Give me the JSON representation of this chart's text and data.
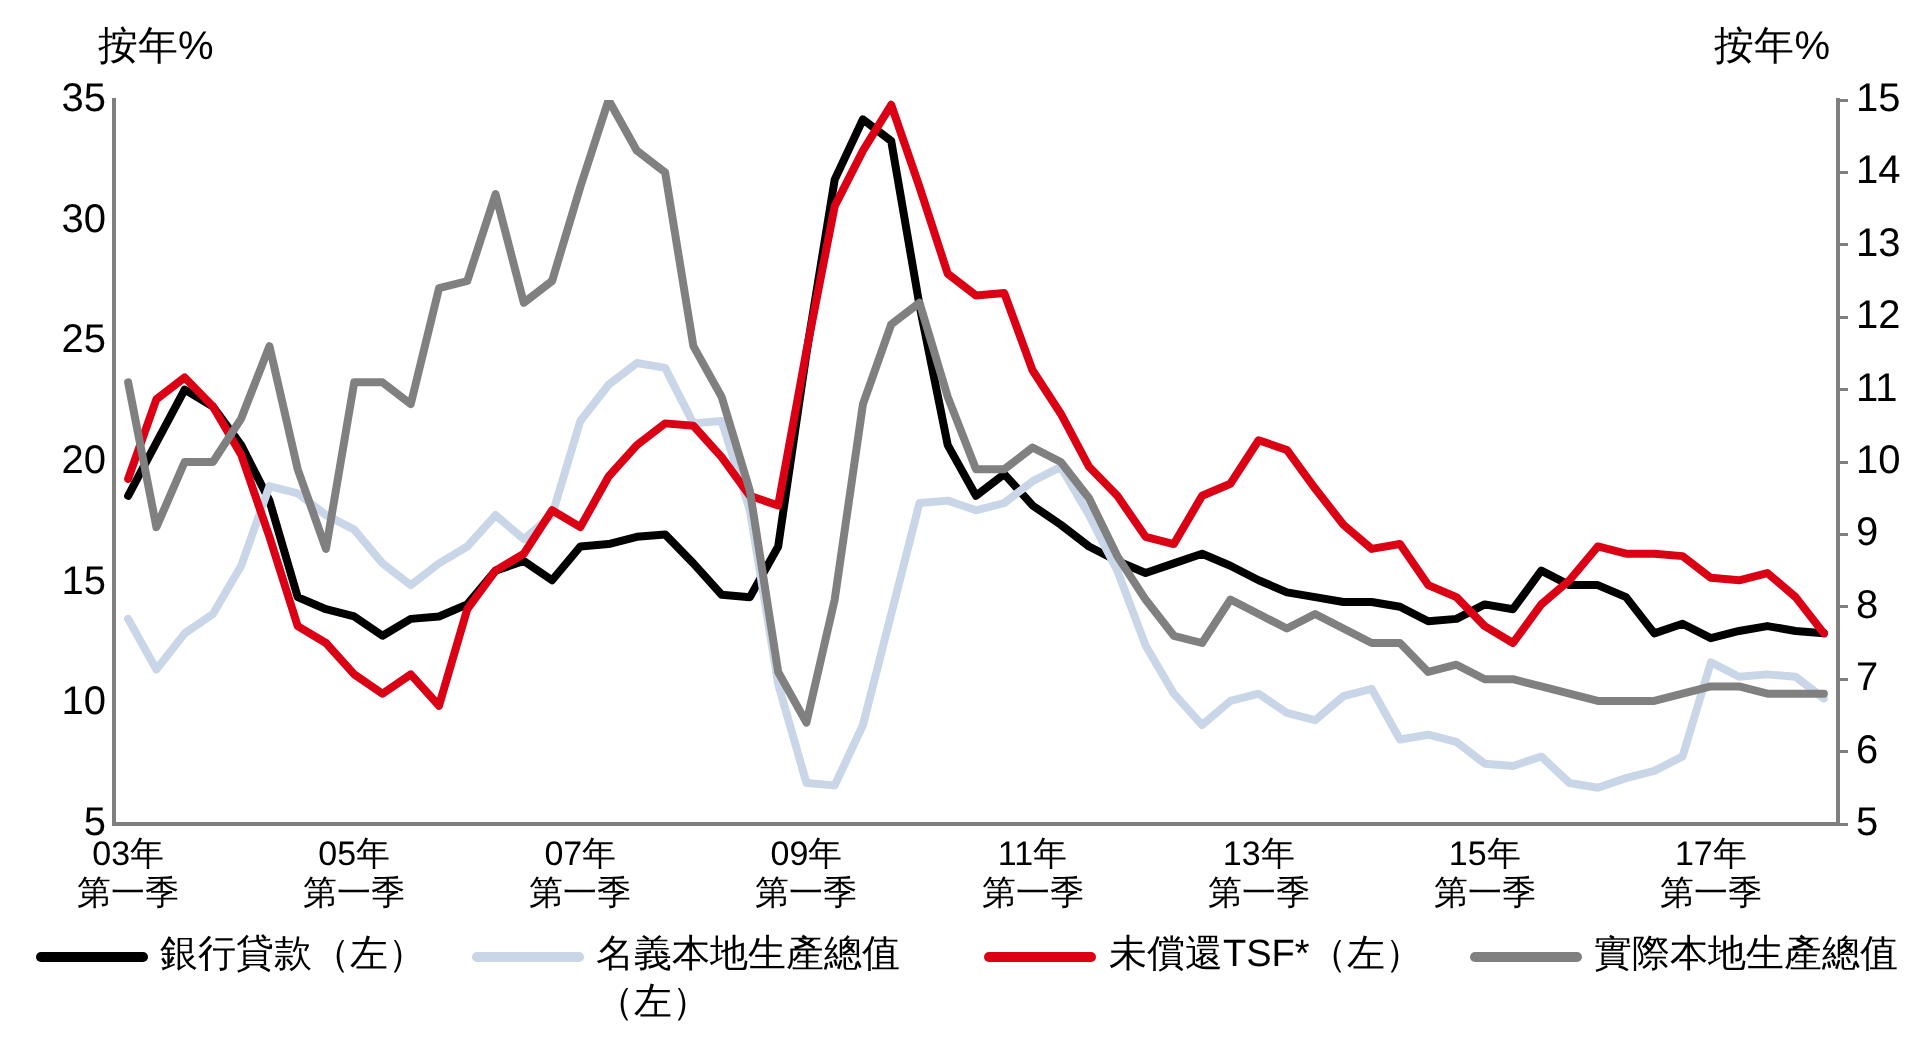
{
  "chart_data": {
    "type": "line",
    "ylabel": "按年%",
    "y2label": "按年%",
    "categories": [
      "03年第一季",
      null,
      null,
      null,
      null,
      null,
      null,
      null,
      "05年第一季",
      null,
      null,
      null,
      null,
      null,
      null,
      null,
      "07年第一季",
      null,
      null,
      null,
      null,
      null,
      null,
      null,
      "09年第一季",
      null,
      null,
      null,
      null,
      null,
      null,
      null,
      "11年第一季",
      null,
      null,
      null,
      null,
      null,
      null,
      null,
      "13年第一季",
      null,
      null,
      null,
      null,
      null,
      null,
      null,
      "15年第一季",
      null,
      null,
      null,
      null,
      null,
      null,
      null,
      "17年第一季",
      null,
      null,
      null,
      null
    ],
    "series": [
      {
        "name": "銀行貸款（左）",
        "color": "#000000",
        "values": [
          18.6,
          20.8,
          23.0,
          22.3,
          20.7,
          18.4,
          14.4,
          13.9,
          13.6,
          12.8,
          13.5,
          13.6,
          14.1,
          15.5,
          15.9,
          15.1,
          16.5,
          16.6,
          16.9,
          17.0,
          15.8,
          14.5,
          14.4,
          16.5,
          24.5,
          31.7,
          34.2,
          33.3,
          26.5,
          20.7,
          18.6,
          19.5,
          18.2,
          17.4,
          16.5,
          15.9,
          15.4,
          15.8,
          16.2,
          15.7,
          15.1,
          14.6,
          14.4,
          14.2,
          14.2,
          14.0,
          13.4,
          13.5,
          14.1,
          13.9,
          15.5,
          14.9,
          14.9,
          14.4,
          12.9,
          13.3,
          12.7,
          13.0,
          13.2,
          13.0,
          12.9
        ]
      },
      {
        "name": "名義本地生產總值（左）",
        "color": "#c9d6e8",
        "values": [
          13.5,
          11.4,
          12.9,
          13.7,
          15.7,
          19.0,
          18.7,
          17.8,
          17.2,
          15.8,
          14.9,
          15.8,
          16.5,
          17.8,
          16.8,
          17.8,
          21.7,
          23.2,
          24.1,
          23.9,
          21.6,
          21.7,
          18.0,
          10.8,
          6.7,
          6.6,
          9.1,
          13.7,
          18.3,
          18.4,
          18.0,
          18.3,
          19.2,
          19.8,
          17.8,
          15.5,
          12.4,
          10.4,
          9.1,
          10.1,
          10.4,
          9.6,
          9.3,
          10.3,
          10.6,
          8.5,
          8.7,
          8.4,
          7.5,
          7.4,
          7.8,
          6.7,
          6.5,
          6.9,
          7.2,
          7.8,
          11.7,
          11.1,
          11.2,
          11.1,
          10.2
        ]
      },
      {
        "name": "未償還TSF*（左）",
        "color": "#dc0014",
        "values": [
          19.3,
          22.6,
          23.5,
          22.3,
          20.3,
          16.9,
          13.2,
          12.5,
          11.2,
          10.4,
          11.2,
          9.9,
          13.9,
          15.5,
          16.2,
          18.0,
          17.3,
          19.4,
          20.7,
          21.6,
          21.5,
          20.2,
          18.6,
          18.2,
          24.6,
          30.6,
          32.9,
          34.8,
          31.4,
          27.8,
          26.9,
          27.0,
          23.8,
          22.0,
          19.8,
          18.6,
          16.9,
          16.6,
          18.6,
          19.1,
          20.9,
          20.5,
          18.9,
          17.4,
          16.4,
          16.6,
          14.9,
          14.4,
          13.2,
          12.5,
          14.1,
          15.1,
          16.5,
          16.2,
          16.2,
          16.1,
          15.2,
          15.1,
          15.4,
          14.4,
          12.9
        ]
      },
      {
        "name": "實際本地生產總值",
        "color": "#808080",
        "axis": "y2",
        "values": [
          11.1,
          9.1,
          10.0,
          10.0,
          10.6,
          11.6,
          9.9,
          8.8,
          11.1,
          11.1,
          10.8,
          12.4,
          12.5,
          13.7,
          12.2,
          12.5,
          13.8,
          15.0,
          14.3,
          14.0,
          11.6,
          10.9,
          9.6,
          7.1,
          6.4,
          8.1,
          10.8,
          11.9,
          12.2,
          10.9,
          9.9,
          9.9,
          10.2,
          10.0,
          9.5,
          8.7,
          8.1,
          7.6,
          7.5,
          8.1,
          7.9,
          7.7,
          7.9,
          7.7,
          7.5,
          7.5,
          7.1,
          7.2,
          7.0,
          7.0,
          6.9,
          6.8,
          6.7,
          6.7,
          6.7,
          6.8,
          6.9,
          6.9,
          6.8,
          6.8,
          6.8
        ]
      }
    ],
    "ylim": [
      5,
      35
    ],
    "yticks": [
      5,
      10,
      15,
      20,
      25,
      30,
      35
    ],
    "y2lim": [
      5,
      15
    ],
    "y2ticks": [
      5,
      6,
      7,
      8,
      9,
      10,
      11,
      12,
      13,
      14,
      15
    ],
    "grid": false,
    "legend": "bottom"
  }
}
